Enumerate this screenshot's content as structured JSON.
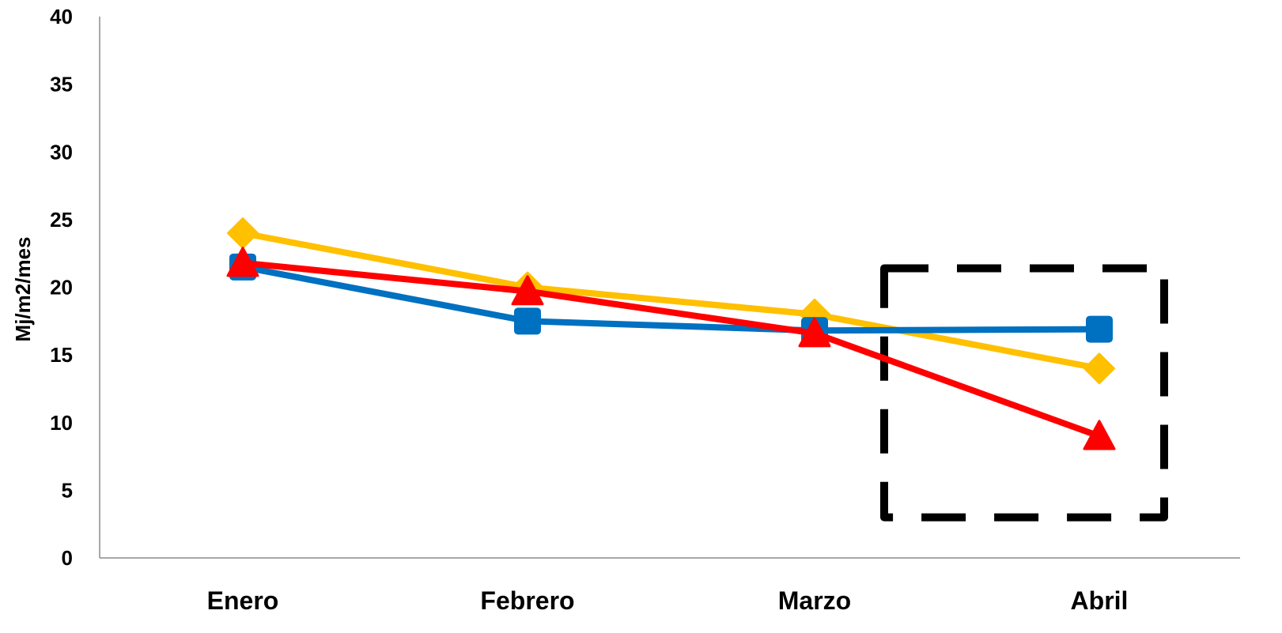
{
  "chart_data": {
    "type": "line",
    "title": "",
    "xlabel": "",
    "ylabel": "Mj/m2/mes",
    "ylim": [
      0,
      40
    ],
    "yticks": [
      0,
      5,
      10,
      15,
      20,
      25,
      30,
      35,
      40
    ],
    "grid": false,
    "categories": [
      "Enero",
      "Febrero",
      "Marzo",
      "Abril"
    ],
    "series": [
      {
        "color": "#FFC000",
        "marker": "diamond",
        "values": [
          24.0,
          20.0,
          18.0,
          14.0
        ]
      },
      {
        "color": "#0070C0",
        "marker": "square",
        "values": [
          21.5,
          17.5,
          16.8,
          16.9
        ]
      },
      {
        "color": "#FF0000",
        "marker": "triangle",
        "values": [
          21.8,
          19.7,
          16.6,
          9.0
        ]
      }
    ],
    "highlight_box": {
      "style": "dashed",
      "color": "#000000",
      "category_from": "Marzo",
      "category_to": "Abril",
      "y_from": 3,
      "y_to": 21.4
    }
  }
}
